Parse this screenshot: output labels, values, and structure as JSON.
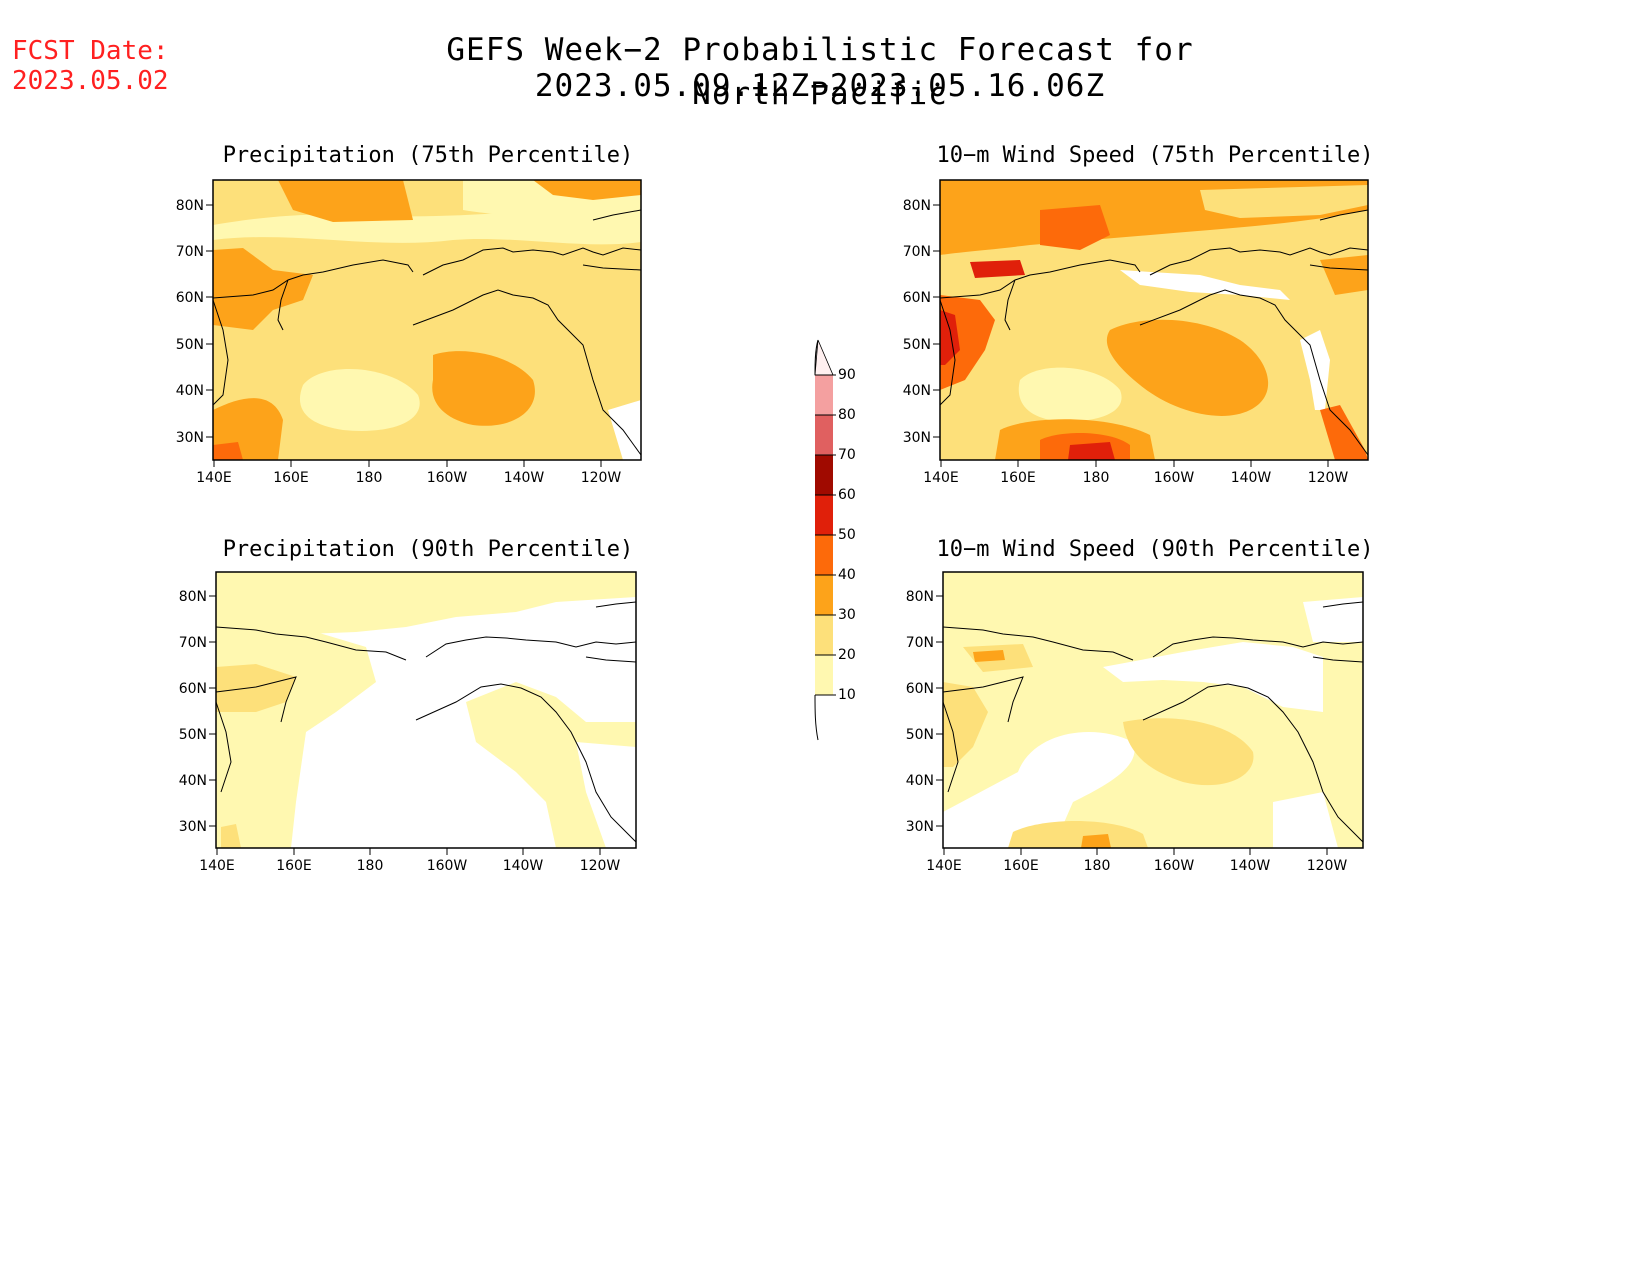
{
  "fcst_date_label": "FCST Date:",
  "fcst_date_value": "2023.05.02",
  "title": "GEFS Week−2 Probabilistic Forecast for 2023.05.09.12Z−2023.05.16.06Z",
  "subtitle": "North Pacific",
  "colors": {
    "c10": "#fff8b0",
    "c20": "#fde07a",
    "c30": "#fda31a",
    "c40": "#fd6a0a",
    "c50": "#e0200a",
    "c60": "#a00a00",
    "c70": "#e06060",
    "c80": "#f4a0a0",
    "c90": "#ffe0e0"
  },
  "colorbar": {
    "ticks": [
      "10",
      "20",
      "30",
      "40",
      "50",
      "60",
      "70",
      "80",
      "90"
    ]
  },
  "panels": [
    {
      "title": "Precipitation (75th Percentile)",
      "lat_labels": [
        "80N",
        "70N",
        "60N",
        "50N",
        "40N",
        "30N"
      ],
      "lon_labels": [
        "140E",
        "160E",
        "180",
        "160W",
        "140W",
        "120W"
      ]
    },
    {
      "title": "10−m Wind Speed (75th Percentile)",
      "lat_labels": [
        "80N",
        "70N",
        "60N",
        "50N",
        "40N",
        "30N"
      ],
      "lon_labels": [
        "140E",
        "160E",
        "180",
        "160W",
        "140W",
        "120W"
      ]
    },
    {
      "title": "Precipitation (90th Percentile)",
      "lat_labels": [
        "80N",
        "70N",
        "60N",
        "50N",
        "40N",
        "30N"
      ],
      "lon_labels": [
        "140E",
        "160E",
        "180",
        "160W",
        "140W",
        "120W"
      ]
    },
    {
      "title": "10−m Wind Speed (90th Percentile)",
      "lat_labels": [
        "80N",
        "70N",
        "60N",
        "50N",
        "40N",
        "30N"
      ],
      "lon_labels": [
        "140E",
        "160E",
        "180",
        "160W",
        "140W",
        "120W"
      ]
    }
  ]
}
